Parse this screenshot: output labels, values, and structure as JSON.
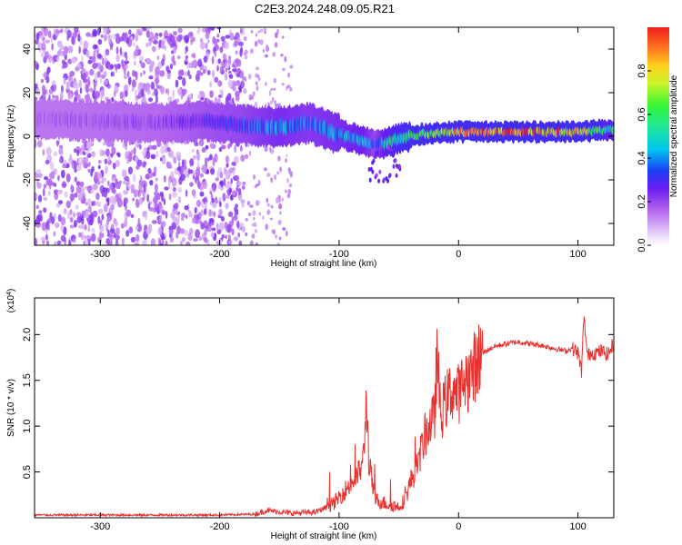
{
  "page": {
    "title": "C2E3.2024.248.09.05.R21"
  },
  "chart_data": [
    {
      "type": "heatmap",
      "title": "C2E3.2024.248.09.05.R21",
      "xlabel": "Height of straight line (km)",
      "ylabel": "Frequency (Hz)",
      "xlim": [
        -355,
        130
      ],
      "ylim": [
        -50,
        50
      ],
      "x_ticks": [
        -300,
        -200,
        -100,
        0,
        100
      ],
      "x_tick_labels": [
        "-300",
        "-200",
        "-100",
        "0",
        "100"
      ],
      "y_ticks": [
        -40,
        -20,
        0,
        20,
        40
      ],
      "y_tick_labels": [
        "-40",
        "-20",
        "0",
        "20",
        "40"
      ],
      "colorbar": {
        "label": "Normalized spectral amplitude",
        "range": [
          0,
          1
        ],
        "ticks": [
          0.0,
          0.2,
          0.4,
          0.6,
          0.8
        ],
        "tick_labels": [
          "0.0",
          "0.2",
          "0.4",
          "0.6",
          "0.8"
        ],
        "colormap": "rainbow (white-violet-blue-cyan-green-yellow-red)"
      },
      "ridge": {
        "description": "Dominant frequency band vs height",
        "x": [
          -350,
          -300,
          -250,
          -210,
          -180,
          -150,
          -125,
          -100,
          -80,
          -70,
          -60,
          -50,
          -30,
          -10,
          0,
          20,
          50,
          80,
          100,
          125
        ],
        "center_freq_hz": [
          8,
          7,
          6,
          7,
          5,
          4,
          6,
          1,
          -2,
          -4,
          -3,
          -1,
          1,
          2,
          2,
          2,
          2,
          2,
          2,
          3
        ],
        "peak_amplitude": [
          0.18,
          0.2,
          0.22,
          0.3,
          0.35,
          0.45,
          0.4,
          0.45,
          0.5,
          0.35,
          0.55,
          0.6,
          0.65,
          0.8,
          0.9,
          0.95,
          1.0,
          0.95,
          0.85,
          0.55
        ]
      },
      "noise_region": {
        "description": "Broadband scattered low-amplitude speckle",
        "x_range": [
          -355,
          -180
        ],
        "sparse_x_range": [
          -180,
          -140
        ],
        "amplitude": 0.15
      }
    },
    {
      "type": "line",
      "xlabel": "Height of straight line (km)",
      "ylabel": "SNR (10 * v/v)",
      "y_scale_label": "(x10",
      "y_scale_exponent": "4",
      "xlim": [
        -355,
        130
      ],
      "ylim": [
        0,
        2.4
      ],
      "x_ticks": [
        -300,
        -200,
        -100,
        0,
        100
      ],
      "x_tick_labels": [
        "-300",
        "-200",
        "-100",
        "0",
        "100"
      ],
      "y_ticks": [
        0.5,
        1.0,
        1.5,
        2.0
      ],
      "y_tick_labels": [
        "0.5",
        "1.0",
        "1.5",
        "2.0"
      ],
      "series": [
        {
          "name": "SNR",
          "color": "#e8322f",
          "x": [
            -355,
            -300,
            -250,
            -200,
            -170,
            -160,
            -140,
            -120,
            -105,
            -95,
            -85,
            -80,
            -77,
            -75,
            -70,
            -60,
            -50,
            -45,
            -40,
            -35,
            -30,
            -25,
            -20,
            -18,
            -15,
            -10,
            -5,
            0,
            5,
            10,
            15,
            20,
            30,
            40,
            50,
            60,
            70,
            80,
            90,
            95,
            100,
            103,
            105,
            108,
            110,
            115,
            120,
            125,
            130
          ],
          "y": [
            0.03,
            0.03,
            0.03,
            0.03,
            0.04,
            0.08,
            0.05,
            0.06,
            0.15,
            0.3,
            0.45,
            0.6,
            1.3,
            0.6,
            0.2,
            0.15,
            0.12,
            0.2,
            0.4,
            0.55,
            0.8,
            1.0,
            1.1,
            1.8,
            1.1,
            1.3,
            1.4,
            1.35,
            1.5,
            1.55,
            1.7,
            1.8,
            1.87,
            1.9,
            1.92,
            1.9,
            1.88,
            1.85,
            1.82,
            1.85,
            1.8,
            1.6,
            2.2,
            1.75,
            1.8,
            1.8,
            1.82,
            1.78,
            1.9
          ]
        }
      ]
    }
  ]
}
